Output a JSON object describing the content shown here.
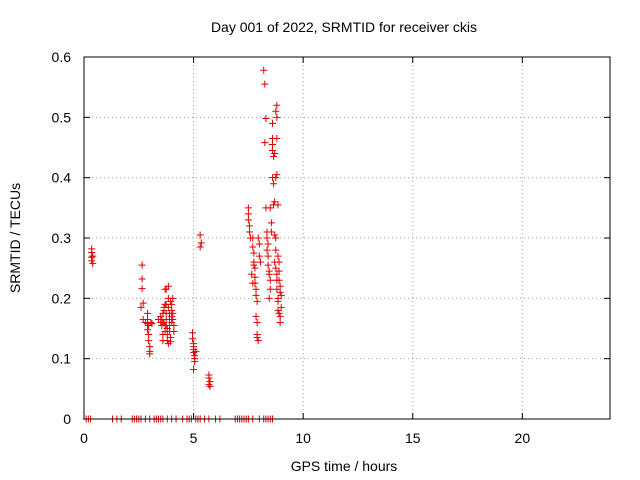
{
  "chart_data": {
    "type": "scatter",
    "title": "Day 001 of 2022, SRMTID for receiver ckis",
    "xlabel": "GPS time / hours",
    "ylabel": "SRMTID / TECUs",
    "xlim": [
      0,
      24
    ],
    "ylim": [
      0,
      0.6
    ],
    "xticks": [
      0,
      5,
      10,
      15,
      20
    ],
    "xtick_labels": [
      "0",
      "5",
      "10",
      "15",
      "20"
    ],
    "yticks": [
      0,
      0.1,
      0.2,
      0.3,
      0.4,
      0.5,
      0.6
    ],
    "ytick_labels": [
      "0",
      "0.1",
      "0.2",
      "0.3",
      "0.4",
      "0.5",
      "0.6"
    ],
    "grid": true,
    "marker": "+",
    "color": "#e00000",
    "series": [
      {
        "name": "SRMTID",
        "points": [
          [
            0.1,
            0
          ],
          [
            0.2,
            0
          ],
          [
            0.3,
            0
          ],
          [
            1.3,
            0
          ],
          [
            1.5,
            0
          ],
          [
            1.7,
            0
          ],
          [
            2.2,
            0
          ],
          [
            2.3,
            0
          ],
          [
            2.4,
            0
          ],
          [
            2.5,
            0
          ],
          [
            2.6,
            0
          ],
          [
            2.8,
            0
          ],
          [
            3.0,
            0
          ],
          [
            3.2,
            0
          ],
          [
            3.3,
            0
          ],
          [
            3.4,
            0
          ],
          [
            3.5,
            0
          ],
          [
            3.6,
            0
          ],
          [
            3.8,
            0
          ],
          [
            4.0,
            0
          ],
          [
            4.2,
            0
          ],
          [
            4.5,
            0
          ],
          [
            4.7,
            0
          ],
          [
            4.8,
            0
          ],
          [
            4.9,
            0
          ],
          [
            5.1,
            0
          ],
          [
            5.2,
            0
          ],
          [
            5.3,
            0
          ],
          [
            5.5,
            0
          ],
          [
            5.7,
            0
          ],
          [
            6.0,
            0
          ],
          [
            6.2,
            0
          ],
          [
            6.9,
            0
          ],
          [
            7.0,
            0
          ],
          [
            7.1,
            0
          ],
          [
            7.2,
            0
          ],
          [
            7.3,
            0
          ],
          [
            7.4,
            0
          ],
          [
            7.5,
            0
          ],
          [
            7.7,
            0
          ],
          [
            8.0,
            0
          ],
          [
            8.2,
            0
          ],
          [
            8.3,
            0
          ],
          [
            8.4,
            0
          ],
          [
            8.5,
            0
          ],
          [
            8.6,
            0
          ],
          [
            0.35,
            0.282
          ],
          [
            0.35,
            0.276
          ],
          [
            0.35,
            0.268
          ],
          [
            0.35,
            0.262
          ],
          [
            0.4,
            0.258
          ],
          [
            0.4,
            0.27
          ],
          [
            2.65,
            0.255
          ],
          [
            2.65,
            0.232
          ],
          [
            2.65,
            0.216
          ],
          [
            2.7,
            0.192
          ],
          [
            2.6,
            0.185
          ],
          [
            2.7,
            0.165
          ],
          [
            2.8,
            0.16
          ],
          [
            2.9,
            0.175
          ],
          [
            2.9,
            0.165
          ],
          [
            2.9,
            0.158
          ],
          [
            2.95,
            0.155
          ],
          [
            2.9,
            0.148
          ],
          [
            2.95,
            0.14
          ],
          [
            2.95,
            0.13
          ],
          [
            3.0,
            0.12
          ],
          [
            3.0,
            0.112
          ],
          [
            3.0,
            0.108
          ],
          [
            3.05,
            0.16
          ],
          [
            3.1,
            0.158
          ],
          [
            3.4,
            0.165
          ],
          [
            3.5,
            0.17
          ],
          [
            3.5,
            0.16
          ],
          [
            3.55,
            0.155
          ],
          [
            3.6,
            0.16
          ],
          [
            3.6,
            0.175
          ],
          [
            3.65,
            0.18
          ],
          [
            3.65,
            0.185
          ],
          [
            3.6,
            0.14
          ],
          [
            3.6,
            0.13
          ],
          [
            3.7,
            0.19
          ],
          [
            3.7,
            0.215
          ],
          [
            3.75,
            0.215
          ],
          [
            3.75,
            0.19
          ],
          [
            3.75,
            0.175
          ],
          [
            3.75,
            0.165
          ],
          [
            3.75,
            0.155
          ],
          [
            3.8,
            0.15
          ],
          [
            3.8,
            0.14
          ],
          [
            3.8,
            0.13
          ],
          [
            3.85,
            0.125
          ],
          [
            3.85,
            0.22
          ],
          [
            3.85,
            0.2
          ],
          [
            3.85,
            0.185
          ],
          [
            3.9,
            0.175
          ],
          [
            3.9,
            0.165
          ],
          [
            3.9,
            0.155
          ],
          [
            3.9,
            0.145
          ],
          [
            3.95,
            0.135
          ],
          [
            3.95,
            0.128
          ],
          [
            4.0,
            0.19
          ],
          [
            4.0,
            0.18
          ],
          [
            4.0,
            0.17
          ],
          [
            4.0,
            0.16
          ],
          [
            4.05,
            0.2
          ],
          [
            4.05,
            0.175
          ],
          [
            4.05,
            0.165
          ],
          [
            4.1,
            0.155
          ],
          [
            4.1,
            0.145
          ],
          [
            3.95,
            0.195
          ],
          [
            3.65,
            0.16
          ],
          [
            3.55,
            0.165
          ],
          [
            3.7,
            0.155
          ],
          [
            3.7,
            0.145
          ],
          [
            4.95,
            0.143
          ],
          [
            4.95,
            0.133
          ],
          [
            5.0,
            0.125
          ],
          [
            5.0,
            0.12
          ],
          [
            5.0,
            0.115
          ],
          [
            5.0,
            0.11
          ],
          [
            5.05,
            0.105
          ],
          [
            5.05,
            0.1
          ],
          [
            5.05,
            0.095
          ],
          [
            5.0,
            0.082
          ],
          [
            5.1,
            0.112
          ],
          [
            5.3,
            0.305
          ],
          [
            5.35,
            0.292
          ],
          [
            5.3,
            0.285
          ],
          [
            5.7,
            0.073
          ],
          [
            5.7,
            0.068
          ],
          [
            5.75,
            0.062
          ],
          [
            5.7,
            0.057
          ],
          [
            5.75,
            0.054
          ],
          [
            7.5,
            0.35
          ],
          [
            7.5,
            0.34
          ],
          [
            7.5,
            0.33
          ],
          [
            7.55,
            0.32
          ],
          [
            7.55,
            0.31
          ],
          [
            7.6,
            0.3
          ],
          [
            7.7,
            0.3
          ],
          [
            7.7,
            0.285
          ],
          [
            7.75,
            0.275
          ],
          [
            7.75,
            0.26
          ],
          [
            7.75,
            0.255
          ],
          [
            7.8,
            0.25
          ],
          [
            7.8,
            0.235
          ],
          [
            7.8,
            0.225
          ],
          [
            7.85,
            0.215
          ],
          [
            7.85,
            0.205
          ],
          [
            7.9,
            0.195
          ],
          [
            7.85,
            0.17
          ],
          [
            7.9,
            0.16
          ],
          [
            7.9,
            0.14
          ],
          [
            7.95,
            0.13
          ],
          [
            7.9,
            0.135
          ],
          [
            8.0,
            0.29
          ],
          [
            8.0,
            0.27
          ],
          [
            8.05,
            0.26
          ],
          [
            7.95,
            0.3
          ],
          [
            7.65,
            0.24
          ],
          [
            7.7,
            0.225
          ],
          [
            8.2,
            0.578
          ],
          [
            8.25,
            0.555
          ],
          [
            8.3,
            0.498
          ],
          [
            8.25,
            0.458
          ],
          [
            8.3,
            0.35
          ],
          [
            8.35,
            0.31
          ],
          [
            8.35,
            0.3
          ],
          [
            8.4,
            0.29
          ],
          [
            8.35,
            0.28
          ],
          [
            8.4,
            0.27
          ],
          [
            8.4,
            0.255
          ],
          [
            8.45,
            0.245
          ],
          [
            8.45,
            0.24
          ],
          [
            8.5,
            0.23
          ],
          [
            8.5,
            0.215
          ],
          [
            8.45,
            0.2
          ],
          [
            8.5,
            0.35
          ],
          [
            8.55,
            0.325
          ],
          [
            8.55,
            0.31
          ],
          [
            8.6,
            0.49
          ],
          [
            8.6,
            0.465
          ],
          [
            8.6,
            0.455
          ],
          [
            8.6,
            0.445
          ],
          [
            8.65,
            0.435
          ],
          [
            8.6,
            0.4
          ],
          [
            8.65,
            0.39
          ],
          [
            8.7,
            0.36
          ],
          [
            8.65,
            0.355
          ],
          [
            8.7,
            0.305
          ],
          [
            8.75,
            0.3
          ],
          [
            8.75,
            0.28
          ],
          [
            8.7,
            0.26
          ],
          [
            8.75,
            0.25
          ],
          [
            8.8,
            0.24
          ],
          [
            8.8,
            0.23
          ],
          [
            8.8,
            0.215
          ],
          [
            8.85,
            0.2
          ],
          [
            8.85,
            0.195
          ],
          [
            8.85,
            0.18
          ],
          [
            8.8,
            0.52
          ],
          [
            8.75,
            0.51
          ],
          [
            8.8,
            0.5
          ],
          [
            8.8,
            0.465
          ],
          [
            8.8,
            0.405
          ],
          [
            8.75,
            0.4
          ],
          [
            8.85,
            0.355
          ],
          [
            8.85,
            0.27
          ],
          [
            8.9,
            0.26
          ],
          [
            8.9,
            0.245
          ],
          [
            8.9,
            0.23
          ],
          [
            8.95,
            0.22
          ],
          [
            8.95,
            0.21
          ],
          [
            8.95,
            0.17
          ],
          [
            8.95,
            0.16
          ],
          [
            9.0,
            0.205
          ],
          [
            9.0,
            0.185
          ],
          [
            8.9,
            0.175
          ],
          [
            8.7,
            0.44
          ]
        ]
      }
    ]
  }
}
